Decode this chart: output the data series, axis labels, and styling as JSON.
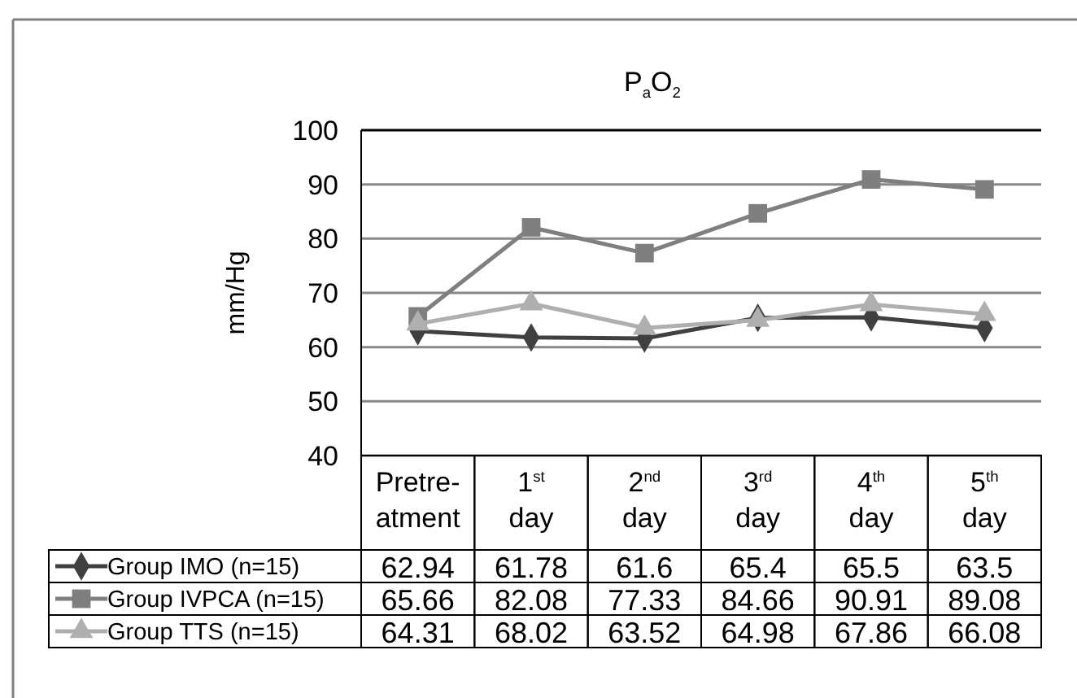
{
  "chart_data": {
    "type": "line",
    "title": "P$_{a}$O$_{2}$",
    "ylabel": "mm/Hg",
    "categories": [
      "Pretre- atment",
      "1$^{st}$ day",
      "2$^{nd}$ day",
      "3$^{rd}$ day",
      "4$^{th}$ day",
      "5$^{th}$ day"
    ],
    "series": [
      {
        "name": "Group IMO (n=15)",
        "color": "#404040",
        "marker": "diamond",
        "values": [
          62.94,
          61.78,
          61.6,
          65.4,
          65.5,
          63.5
        ]
      },
      {
        "name": "Group IVPCA (n=15)",
        "color": "#7f7f7f",
        "marker": "square",
        "values": [
          65.66,
          82.08,
          77.33,
          84.66,
          90.91,
          89.08
        ]
      },
      {
        "name": "Group TTS (n=15)",
        "color": "#afafaf",
        "marker": "triangle",
        "values": [
          64.31,
          68.02,
          63.52,
          64.98,
          67.86,
          66.08
        ]
      }
    ],
    "ylim": [
      40,
      100
    ],
    "yticks": [
      40,
      50,
      60,
      70,
      80,
      90,
      100
    ],
    "grid": "y",
    "data_labels": true,
    "legend": "bottom",
    "line_style": "solid"
  }
}
